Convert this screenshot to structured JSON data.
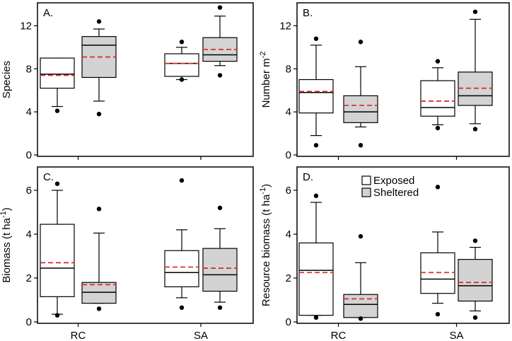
{
  "colors": {
    "exposed_fill": "#ffffff",
    "sheltered_fill": "#d3d3d3",
    "mean_line": "#e03030",
    "median_line": "#000000",
    "frame": "#000000"
  },
  "legend": {
    "exposed": "Exposed",
    "sheltered": "Sheltered"
  },
  "chart_data": [
    {
      "type": "box",
      "panel_label": "A.",
      "ylabel": "Species",
      "ylim": [
        0,
        14
      ],
      "yticks": [
        "0",
        "4",
        "8",
        "12"
      ],
      "categories": [
        "RC",
        "SA"
      ],
      "show_xticks": false,
      "series": [
        {
          "name": "Exposed",
          "boxes": [
            {
              "whisker_low": 4.5,
              "q1": 6.2,
              "median": 7.5,
              "q3": 9.0,
              "whisker_high": 9.0,
              "mean": 7.4,
              "outliers": [
                4.1
              ]
            },
            {
              "whisker_low": 7.0,
              "q1": 7.3,
              "median": 8.5,
              "q3": 9.4,
              "whisker_high": 10.0,
              "mean": 8.5,
              "outliers": [
                7.0,
                10.5
              ]
            }
          ]
        },
        {
          "name": "Sheltered",
          "boxes": [
            {
              "whisker_low": 5.0,
              "q1": 7.2,
              "median": 10.2,
              "q3": 11.0,
              "whisker_high": 11.7,
              "mean": 9.1,
              "outliers": [
                3.8,
                12.4
              ]
            },
            {
              "whisker_low": 8.3,
              "q1": 8.7,
              "median": 9.3,
              "q3": 10.9,
              "whisker_high": 12.9,
              "mean": 9.8,
              "outliers": [
                7.4,
                13.7
              ]
            }
          ]
        }
      ]
    },
    {
      "type": "box",
      "panel_label": "B.",
      "ylabel": "Number m-2",
      "ylim": [
        0,
        14
      ],
      "yticks": [
        "0",
        "4",
        "8",
        "12"
      ],
      "categories": [
        "RC",
        "SA"
      ],
      "show_xticks": false,
      "series": [
        {
          "name": "Exposed",
          "boxes": [
            {
              "whisker_low": 1.8,
              "q1": 3.9,
              "median": 5.8,
              "q3": 7.0,
              "whisker_high": 10.2,
              "mean": 5.9,
              "outliers": [
                0.9,
                10.8
              ]
            },
            {
              "whisker_low": 2.8,
              "q1": 3.6,
              "median": 4.4,
              "q3": 6.9,
              "whisker_high": 8.1,
              "mean": 5.0,
              "outliers": [
                2.5,
                8.7
              ]
            }
          ]
        },
        {
          "name": "Sheltered",
          "boxes": [
            {
              "whisker_low": 2.6,
              "q1": 3.0,
              "median": 4.0,
              "q3": 5.5,
              "whisker_high": 8.2,
              "mean": 4.6,
              "outliers": [
                0.9,
                10.5
              ]
            },
            {
              "whisker_low": 2.9,
              "q1": 4.6,
              "median": 5.5,
              "q3": 7.7,
              "whisker_high": 12.6,
              "mean": 6.2,
              "outliers": [
                2.4,
                13.3
              ]
            }
          ]
        }
      ]
    },
    {
      "type": "box",
      "panel_label": "C.",
      "ylabel": "Biomass (t ha-1)",
      "ylim": [
        0,
        7
      ],
      "yticks": [
        "0",
        "2",
        "4",
        "6"
      ],
      "categories": [
        "RC",
        "SA"
      ],
      "show_xticks": true,
      "series": [
        {
          "name": "Exposed",
          "boxes": [
            {
              "whisker_low": 0.35,
              "q1": 1.15,
              "median": 2.45,
              "q3": 4.45,
              "whisker_high": 6.0,
              "mean": 2.7,
              "outliers": [
                0.3,
                6.3
              ]
            },
            {
              "whisker_low": 1.1,
              "q1": 1.6,
              "median": 2.25,
              "q3": 3.25,
              "whisker_high": 4.2,
              "mean": 2.5,
              "outliers": [
                0.65,
                6.45
              ]
            }
          ]
        },
        {
          "name": "Sheltered",
          "boxes": [
            {
              "whisker_low": 0.85,
              "q1": 0.85,
              "median": 1.35,
              "q3": 1.8,
              "whisker_high": 4.05,
              "mean": 1.7,
              "outliers": [
                0.6,
                5.15
              ]
            },
            {
              "whisker_low": 0.9,
              "q1": 1.4,
              "median": 2.15,
              "q3": 3.35,
              "whisker_high": 4.25,
              "mean": 2.45,
              "outliers": [
                0.65,
                5.2
              ]
            }
          ]
        }
      ]
    },
    {
      "type": "box",
      "panel_label": "D.",
      "ylabel": "Resource biomass (t ha-1)",
      "ylim": [
        0,
        7
      ],
      "yticks": [
        "0",
        "2",
        "4",
        "6"
      ],
      "categories": [
        "RC",
        "SA"
      ],
      "show_xticks": true,
      "series": [
        {
          "name": "Exposed",
          "boxes": [
            {
              "whisker_low": 0.3,
              "q1": 0.3,
              "median": 2.35,
              "q3": 3.6,
              "whisker_high": 5.45,
              "mean": 2.25,
              "outliers": [
                0.2,
                5.75
              ]
            },
            {
              "whisker_low": 0.85,
              "q1": 1.3,
              "median": 1.95,
              "q3": 3.15,
              "whisker_high": 4.1,
              "mean": 2.25,
              "outliers": [
                0.35,
                6.15
              ]
            }
          ]
        },
        {
          "name": "Sheltered",
          "boxes": [
            {
              "whisker_low": 0.2,
              "q1": 0.2,
              "median": 0.8,
              "q3": 1.25,
              "whisker_high": 2.7,
              "mean": 1.05,
              "outliers": [
                0.15,
                3.9
              ]
            },
            {
              "whisker_low": 0.5,
              "q1": 0.95,
              "median": 1.65,
              "q3": 2.85,
              "whisker_high": 3.4,
              "mean": 1.8,
              "outliers": [
                0.2,
                3.7
              ]
            }
          ]
        }
      ]
    }
  ]
}
